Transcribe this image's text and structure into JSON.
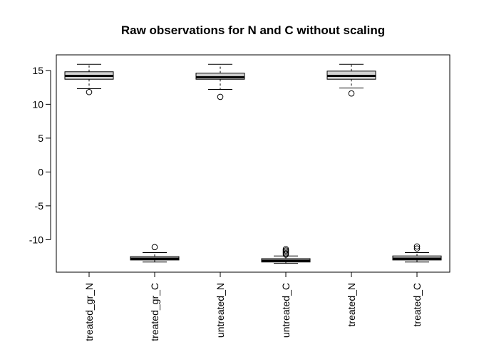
{
  "chart_data": {
    "type": "box",
    "title": "Raw observations for N and C without scaling",
    "xlabel": "",
    "ylabel": "",
    "ylim": [
      -14.8,
      17.3
    ],
    "yticks": [
      15,
      10,
      5,
      0,
      -5,
      -10
    ],
    "ytick_labels": [
      "15",
      "10",
      "5",
      "0",
      "-5",
      "-10"
    ],
    "categories": [
      "treated_gr_N",
      "treated_gr_C",
      "untreated_N",
      "untreated_C",
      "treated_N",
      "treated_C"
    ],
    "boxes": [
      {
        "min": 12.3,
        "q1": 13.7,
        "median": 14.2,
        "q3": 14.8,
        "max": 15.9,
        "outliers": [
          11.8
        ]
      },
      {
        "min": -13.3,
        "q1": -13.0,
        "median": -12.8,
        "q3": -12.5,
        "max": -11.9,
        "outliers": [
          -11.1
        ]
      },
      {
        "min": 12.2,
        "q1": 13.7,
        "median": 14.0,
        "q3": 14.6,
        "max": 15.9,
        "outliers": [
          11.1
        ]
      },
      {
        "min": -13.5,
        "q1": -13.3,
        "median": -13.1,
        "q3": -12.8,
        "max": -12.4,
        "outliers": [
          -12.2,
          -12.0,
          -11.8,
          -11.6,
          -11.4
        ]
      },
      {
        "min": 12.4,
        "q1": 13.7,
        "median": 14.2,
        "q3": 14.9,
        "max": 15.9,
        "outliers": [
          11.6
        ]
      },
      {
        "min": -13.3,
        "q1": -13.0,
        "median": -12.8,
        "q3": -12.4,
        "max": -11.9,
        "outliers": [
          -11.3,
          -11.0
        ]
      }
    ],
    "box_fill": "#d3d3d3",
    "line_color": "#000000",
    "grid": false,
    "legend": "none"
  }
}
